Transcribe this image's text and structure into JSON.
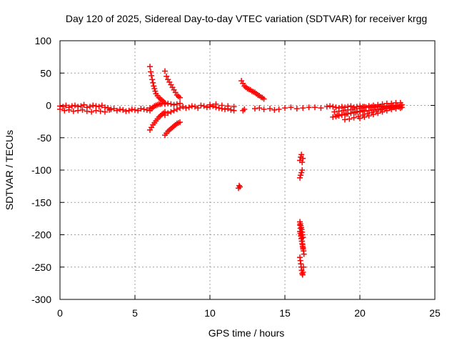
{
  "chart_data": {
    "type": "scatter",
    "title": "Day 120 of 2025, Sidereal Day-to-day VTEC variation (SDTVAR) for receiver krgg",
    "xlabel": "GPS time / hours",
    "ylabel": "SDTVAR / TECUs",
    "xlim": [
      0,
      25
    ],
    "ylim": [
      -300,
      100
    ],
    "xticks": [
      0,
      5,
      10,
      15,
      20,
      25
    ],
    "yticks": [
      -300,
      -250,
      -200,
      -150,
      -100,
      -50,
      0,
      50,
      100
    ],
    "grid": true,
    "marker": "+",
    "color": "#ff0000",
    "series": [
      {
        "name": "SDTVAR",
        "x": [
          0.0,
          0.2,
          0.4,
          0.6,
          0.8,
          1.0,
          1.2,
          1.4,
          1.6,
          1.8,
          2.0,
          2.2,
          2.4,
          2.6,
          2.8,
          3.0,
          0.0,
          0.3,
          0.6,
          0.9,
          1.2,
          1.5,
          1.8,
          2.1,
          2.4,
          2.7,
          3.0,
          3.3,
          3.2,
          3.4,
          3.6,
          3.8,
          4.0,
          4.2,
          4.4,
          4.6,
          4.8,
          5.0,
          5.2,
          5.4,
          5.6,
          5.8,
          6.0,
          6.0,
          6.05,
          6.1,
          6.15,
          6.2,
          6.25,
          6.3,
          6.35,
          6.4,
          6.5,
          6.6,
          6.7,
          6.8,
          6.9,
          7.0,
          6.0,
          6.1,
          6.2,
          6.3,
          6.4,
          6.5,
          6.6,
          6.7,
          6.8,
          6.9,
          7.0,
          6.0,
          6.1,
          6.2,
          6.3,
          6.4,
          6.5,
          6.6,
          6.7,
          6.8,
          7.0,
          7.1,
          7.2,
          7.3,
          7.4,
          7.5,
          7.6,
          7.7,
          7.8,
          7.9,
          8.0,
          7.0,
          7.1,
          7.2,
          7.3,
          7.4,
          7.5,
          7.6,
          7.7,
          7.8,
          7.9,
          8.0,
          7.0,
          7.2,
          7.4,
          7.6,
          7.8,
          8.0,
          7.0,
          7.2,
          7.4,
          7.6,
          7.8,
          8.0,
          8.2,
          8.4,
          8.6,
          8.8,
          9.0,
          9.2,
          9.4,
          9.6,
          9.8,
          10.0,
          10.2,
          10.4,
          10.6,
          10.8,
          11.0,
          11.2,
          11.4,
          11.6,
          10.0,
          10.4,
          10.8,
          11.2,
          11.6,
          12.1,
          12.2,
          12.3,
          12.4,
          12.5,
          12.6,
          12.7,
          12.8,
          12.9,
          13.0,
          13.1,
          13.2,
          13.3,
          13.4,
          13.5,
          13.6,
          11.9,
          12.0,
          11.95,
          12.2,
          12.3,
          13.0,
          13.3,
          13.6,
          14.0,
          14.3,
          14.6,
          15.0,
          15.4,
          15.8,
          16.2,
          16.6,
          16.0,
          16.05,
          16.1,
          16.15,
          16.2,
          16.0,
          16.05,
          16.1,
          16.15,
          16.0,
          16.03,
          16.06,
          16.09,
          16.12,
          16.15,
          16.18,
          16.21,
          16.24,
          16.27,
          16.0,
          16.03,
          16.06,
          16.09,
          16.12,
          16.15,
          16.18,
          16.21,
          16.24,
          16.0,
          16.03,
          16.06,
          16.09,
          16.12,
          16.15,
          16.18,
          16.21,
          16.0,
          16.03,
          16.06,
          16.09,
          16.12,
          16.15,
          16.18,
          16.21,
          17.0,
          17.4,
          17.8,
          18.0,
          18.2,
          18.4,
          18.6,
          18.8,
          19.0,
          19.2,
          19.4,
          19.6,
          19.8,
          20.0,
          20.2,
          20.4,
          20.6,
          20.8,
          21.0,
          21.2,
          21.4,
          21.6,
          21.8,
          22.0,
          22.2,
          22.4,
          22.6,
          22.8,
          18.2,
          18.4,
          18.6,
          18.8,
          19.0,
          19.2,
          19.4,
          19.6,
          19.8,
          20.0,
          20.2,
          18.5,
          18.8,
          19.1,
          19.4,
          19.7,
          20.0,
          20.3,
          20.6,
          20.9,
          21.2,
          21.5,
          21.8,
          22.1,
          22.4,
          22.7,
          18.3,
          18.6,
          18.9,
          19.2,
          19.5,
          19.8,
          20.1,
          20.4,
          20.7,
          21.0,
          21.3,
          21.6,
          21.9,
          22.2,
          22.5,
          22.8,
          19.0,
          19.3,
          19.6,
          19.9,
          20.2,
          20.5,
          20.8,
          21.1,
          21.4,
          21.7,
          22.0,
          22.3,
          22.6,
          20.0,
          20.3,
          20.6,
          20.9,
          21.2,
          21.5,
          21.8,
          22.1,
          22.4,
          22.7,
          20.3,
          20.6,
          20.9,
          21.2,
          21.5,
          21.8,
          22.1,
          22.4,
          22.7
        ],
        "y": [
          -1,
          -2,
          0,
          -3,
          -1,
          0,
          -2,
          -1,
          1,
          -3,
          -2,
          0,
          -1,
          -2,
          0,
          -3,
          -6,
          -8,
          -7,
          -9,
          -8,
          -7,
          -9,
          -10,
          -8,
          -9,
          -10,
          -7,
          -4,
          -6,
          -5,
          -8,
          -6,
          -7,
          -9,
          -8,
          -6,
          -7,
          -8,
          -5,
          -6,
          -7,
          -4,
          60,
          52,
          46,
          40,
          35,
          30,
          26,
          22,
          18,
          15,
          12,
          10,
          8,
          6,
          4,
          -38,
          -34,
          -30,
          -27,
          -24,
          -21,
          -18,
          -16,
          -14,
          -12,
          -10,
          -8,
          -5,
          -3,
          -1,
          0,
          1,
          2,
          2,
          3,
          53,
          45,
          40,
          36,
          32,
          28,
          24,
          20,
          16,
          14,
          12,
          -46,
          -43,
          -40,
          -38,
          -36,
          -34,
          -32,
          -30,
          -28,
          -27,
          -26,
          2,
          3,
          2,
          1,
          2,
          3,
          -15,
          -12,
          -10,
          -8,
          -6,
          -4,
          -2,
          -4,
          -3,
          -1,
          -2,
          -4,
          0,
          -1,
          -3,
          -2,
          -1,
          -3,
          -4,
          -5,
          -6,
          -5,
          -7,
          -8,
          1,
          2,
          0,
          -1,
          -2,
          38,
          34,
          30,
          28,
          26,
          25,
          24,
          22,
          21,
          20,
          18,
          16,
          15,
          13,
          12,
          10,
          -128,
          -126,
          -124,
          -8,
          -6,
          -5,
          -4,
          -6,
          -5,
          -7,
          -6,
          -4,
          -3,
          -5,
          -4,
          -3,
          -85,
          -80,
          -76,
          -88,
          -82,
          -112,
          -108,
          -104,
          -100,
          -185,
          -190,
          -195,
          -200,
          -205,
          -210,
          -215,
          -220,
          -225,
          -230,
          -235,
          -240,
          -245,
          -250,
          -255,
          -260,
          -262,
          -258,
          -250,
          -195,
          -198,
          -202,
          -206,
          -210,
          -214,
          -218,
          -222,
          -180,
          -183,
          -186,
          -189,
          -192,
          -196,
          -200,
          -204,
          -3,
          -4,
          -2,
          -1,
          -2,
          -3,
          -4,
          -2,
          -3,
          -2,
          -1,
          -3,
          -2,
          -1,
          -2,
          -3,
          -1,
          -2,
          -3,
          -1,
          -2,
          -3,
          -1,
          -2,
          -3,
          -1,
          -2,
          -3,
          -18,
          -17,
          -16,
          -15,
          -14,
          -13,
          -12,
          -11,
          -10,
          -9,
          -8,
          -15,
          -14,
          -13,
          -12,
          -11,
          -10,
          -9,
          -8,
          -7,
          -6,
          -5,
          -4,
          -3,
          -2,
          -1,
          -10,
          -9,
          -8,
          -7,
          -6,
          -5,
          -4,
          -3,
          -3,
          -2,
          -2,
          -1,
          -1,
          0,
          0,
          1,
          -22,
          -21,
          -19,
          -17,
          -15,
          -13,
          -11,
          -9,
          -7,
          -5,
          -4,
          -3,
          -2,
          -20,
          -18,
          -16,
          -14,
          -12,
          -10,
          -8,
          -6,
          -5,
          -4,
          -2,
          -1,
          0,
          1,
          2,
          3,
          3,
          4,
          4
        ]
      }
    ]
  }
}
